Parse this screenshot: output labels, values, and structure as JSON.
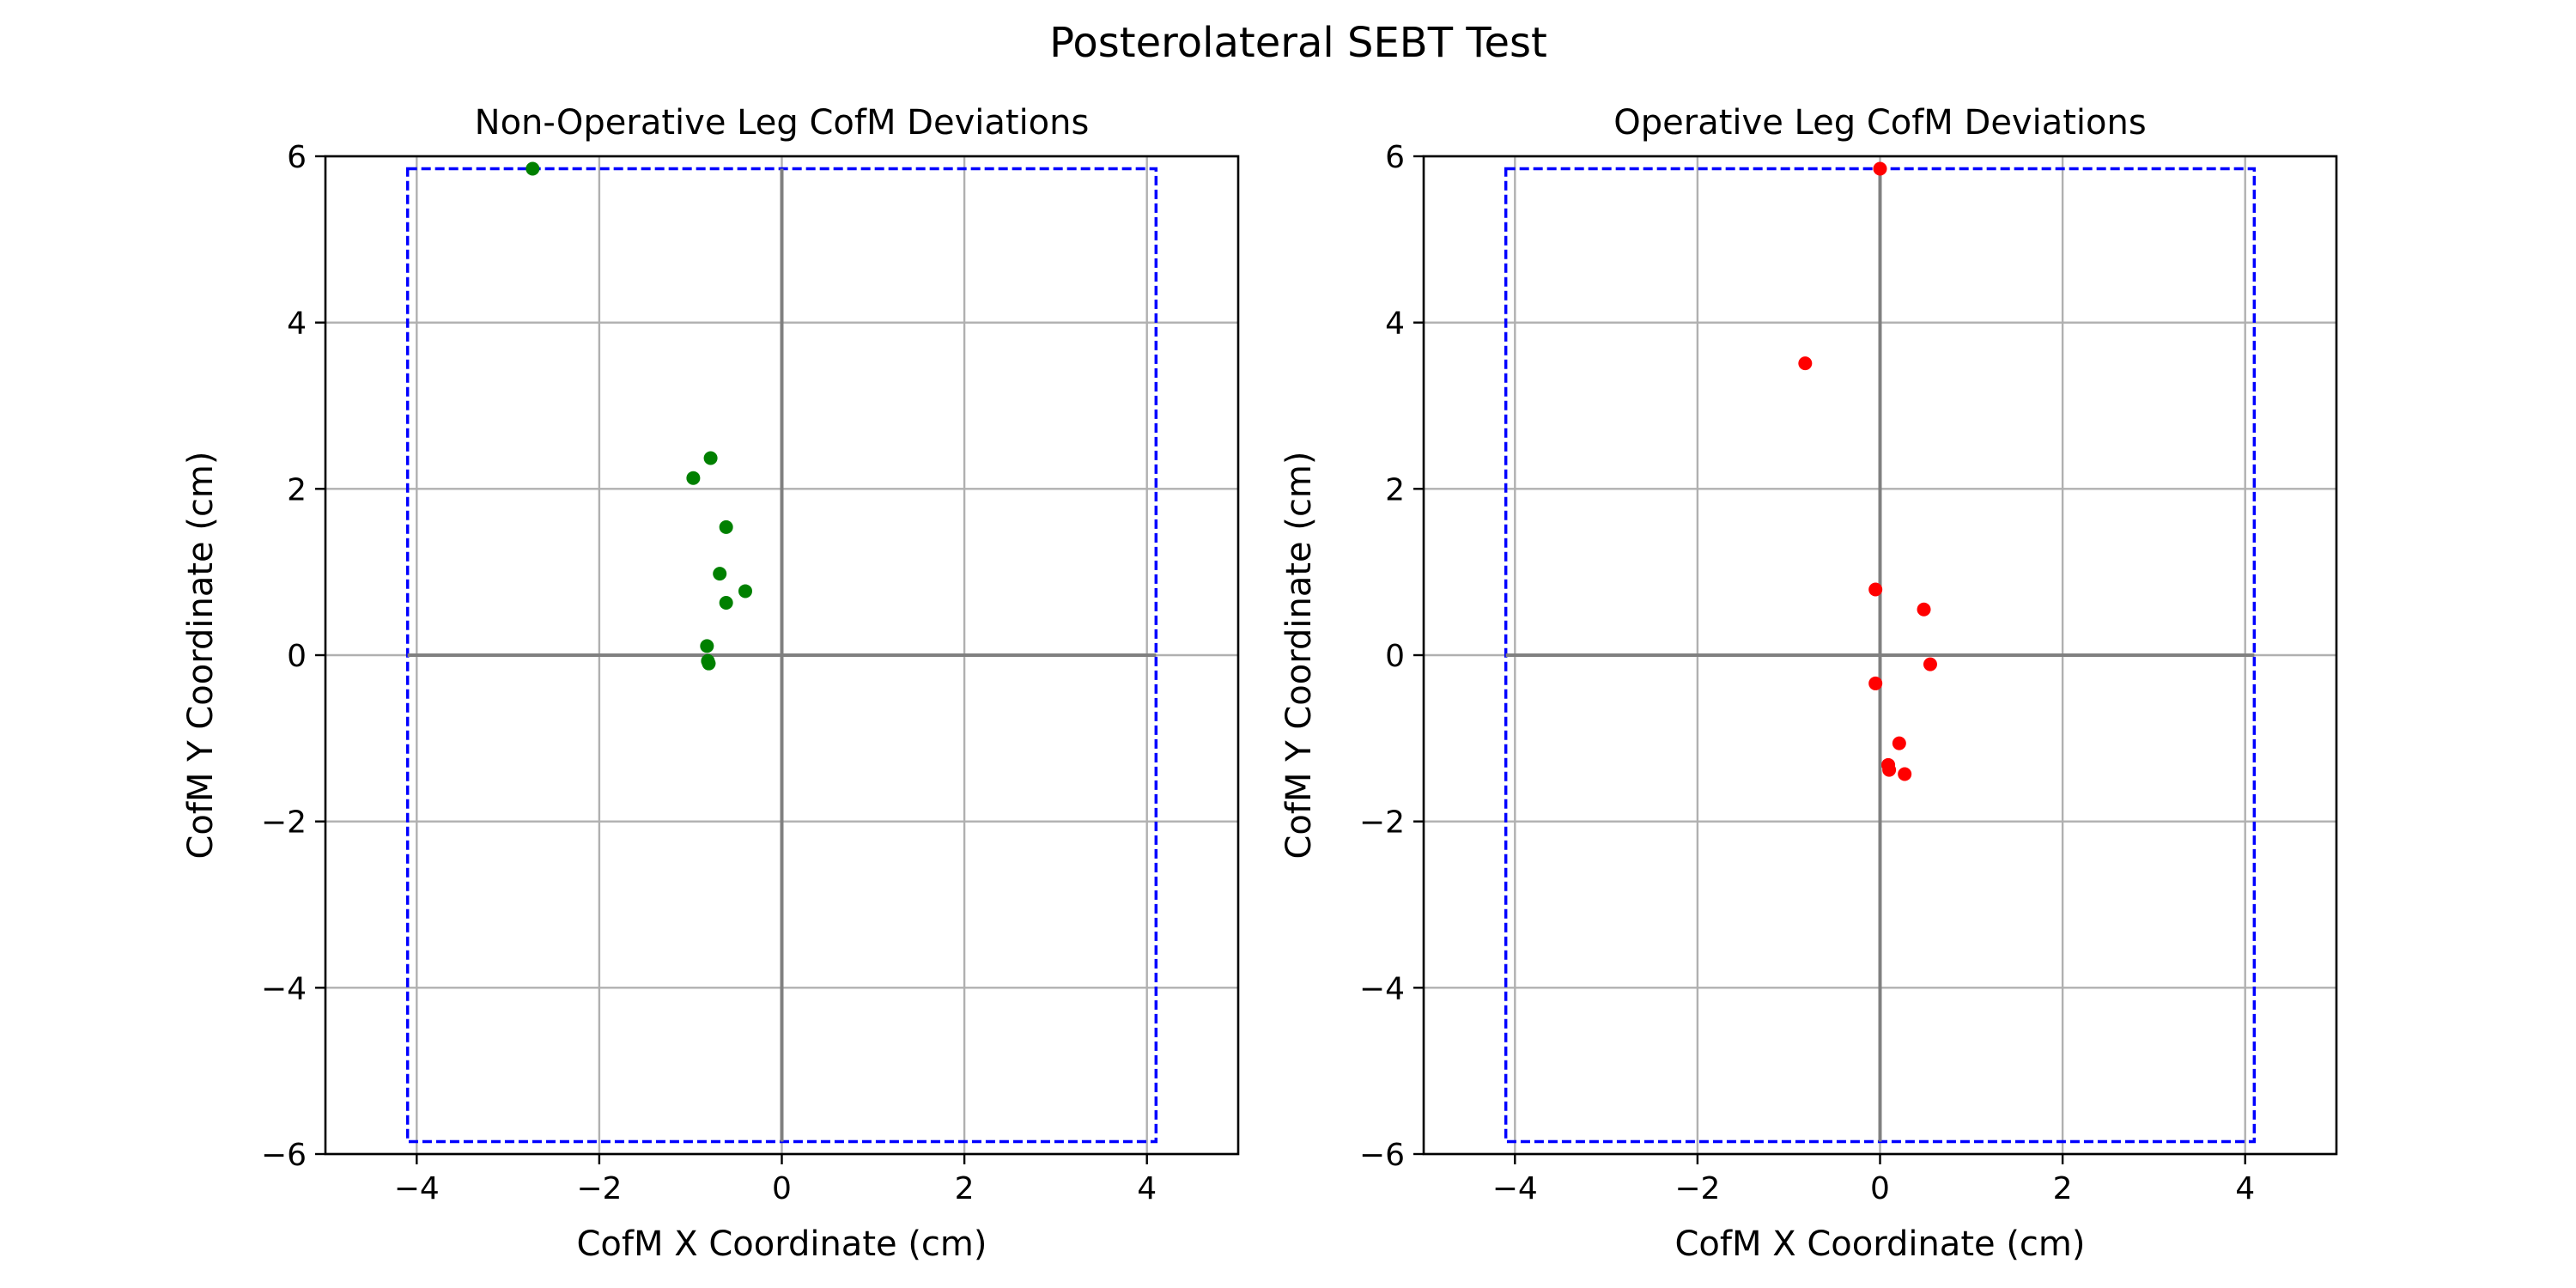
{
  "figure": {
    "title": "Posterolateral SEBT Test"
  },
  "chart_data": [
    {
      "type": "scatter",
      "title": "Non-Operative Leg CofM Deviations",
      "xlabel": "CofM X Coordinate (cm)",
      "ylabel": "CofM Y Coordinate (cm)",
      "xlim": [
        -5,
        5
      ],
      "ylim": [
        -6,
        6
      ],
      "xticks": [
        -4,
        -2,
        0,
        2,
        4
      ],
      "yticks": [
        -6,
        -4,
        -2,
        0,
        2,
        4,
        6
      ],
      "grid": true,
      "axis_lines": {
        "x": 0,
        "y": 0,
        "color": "#808080"
      },
      "boundary": {
        "x": [
          -4.1,
          4.1
        ],
        "y": [
          -5.85,
          5.85
        ],
        "color": "#0000ff",
        "style": "dashed"
      },
      "series": [
        {
          "color": "#008000",
          "points": [
            {
              "x": -2.73,
              "y": 5.85
            },
            {
              "x": -0.97,
              "y": 2.13
            },
            {
              "x": -0.78,
              "y": 2.37
            },
            {
              "x": -0.61,
              "y": 1.54
            },
            {
              "x": -0.68,
              "y": 0.98
            },
            {
              "x": -0.4,
              "y": 0.77
            },
            {
              "x": -0.61,
              "y": 0.63
            },
            {
              "x": -0.82,
              "y": 0.11
            },
            {
              "x": -0.81,
              "y": -0.07
            },
            {
              "x": -0.8,
              "y": -0.1
            }
          ]
        }
      ]
    },
    {
      "type": "scatter",
      "title": "Operative Leg CofM Deviations",
      "xlabel": "CofM X Coordinate (cm)",
      "ylabel": "CofM Y Coordinate (cm)",
      "xlim": [
        -5,
        5
      ],
      "ylim": [
        -6,
        6
      ],
      "xticks": [
        -4,
        -2,
        0,
        2,
        4
      ],
      "yticks": [
        -6,
        -4,
        -2,
        0,
        2,
        4,
        6
      ],
      "grid": true,
      "axis_lines": {
        "x": 0,
        "y": 0,
        "color": "#808080"
      },
      "boundary": {
        "x": [
          -4.1,
          4.1
        ],
        "y": [
          -5.85,
          5.85
        ],
        "color": "#0000ff",
        "style": "dashed"
      },
      "series": [
        {
          "color": "#ff0000",
          "points": [
            {
              "x": 0.0,
              "y": 5.85
            },
            {
              "x": -0.82,
              "y": 3.51
            },
            {
              "x": -0.05,
              "y": 0.79
            },
            {
              "x": 0.48,
              "y": 0.55
            },
            {
              "x": 0.55,
              "y": -0.11
            },
            {
              "x": -0.05,
              "y": -0.34
            },
            {
              "x": 0.21,
              "y": -1.06
            },
            {
              "x": 0.09,
              "y": -1.32
            },
            {
              "x": 0.1,
              "y": -1.38
            },
            {
              "x": 0.27,
              "y": -1.43
            }
          ]
        }
      ]
    }
  ]
}
